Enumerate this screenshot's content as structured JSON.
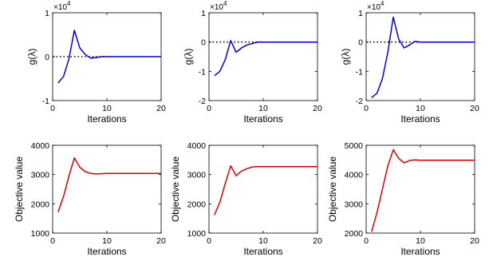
{
  "chart_data": [
    {
      "type": "line",
      "xlabel": "Iterations",
      "ylabel": "g(λ)",
      "exponent_label": "×10",
      "exponent_power": "4",
      "xlim": [
        0,
        20
      ],
      "ylim": [
        -1,
        1
      ],
      "xticks": [
        0,
        10,
        20
      ],
      "yticks": [
        -1,
        0,
        1
      ],
      "ytick_labels": [
        "-1",
        "0",
        "1"
      ],
      "color": "#0000dd",
      "zero_line": true,
      "x": [
        1,
        2,
        3,
        4,
        5,
        6,
        7,
        8,
        9,
        10,
        11,
        12,
        13,
        14,
        15,
        16,
        17,
        18,
        19,
        20
      ],
      "y": [
        -0.6,
        -0.45,
        -0.05,
        0.6,
        0.2,
        0.05,
        -0.03,
        -0.02,
        0,
        0,
        0,
        0,
        0,
        0,
        0,
        0,
        0,
        0,
        0,
        0
      ]
    },
    {
      "type": "line",
      "xlabel": "Iterations",
      "ylabel": "g(λ)",
      "exponent_label": "×10",
      "exponent_power": "4",
      "xlim": [
        0,
        20
      ],
      "ylim": [
        -2,
        1
      ],
      "xticks": [
        0,
        10,
        20
      ],
      "yticks": [
        -2,
        -1,
        0,
        1
      ],
      "ytick_labels": [
        "-2",
        "-1",
        "0",
        "1"
      ],
      "color": "#0000dd",
      "zero_line": true,
      "x": [
        1,
        2,
        3,
        4,
        5,
        6,
        7,
        8,
        9,
        10,
        11,
        12,
        13,
        14,
        15,
        16,
        17,
        18,
        19,
        20
      ],
      "y": [
        -1.15,
        -1.0,
        -0.6,
        0.05,
        -0.35,
        -0.2,
        -0.1,
        -0.05,
        0,
        0,
        0,
        0,
        0,
        0,
        0,
        0,
        0,
        0,
        0,
        0
      ]
    },
    {
      "type": "line",
      "xlabel": "Iterations",
      "ylabel": "g(λ)",
      "exponent_label": "×10",
      "exponent_power": "4",
      "xlim": [
        0,
        20
      ],
      "ylim": [
        -2,
        1
      ],
      "xticks": [
        0,
        10,
        20
      ],
      "yticks": [
        -2,
        -1,
        0,
        1
      ],
      "ytick_labels": [
        "-2",
        "-1",
        "0",
        "1"
      ],
      "color": "#0000dd",
      "zero_line": true,
      "x": [
        1,
        2,
        3,
        4,
        5,
        6,
        7,
        8,
        9,
        10,
        11,
        12,
        13,
        14,
        15,
        16,
        17,
        18,
        19,
        20
      ],
      "y": [
        -1.9,
        -1.75,
        -1.25,
        -0.35,
        0.85,
        0.1,
        -0.2,
        -0.1,
        0.02,
        0,
        0,
        0,
        0,
        0,
        0,
        0,
        0,
        0,
        0,
        0
      ]
    },
    {
      "type": "line",
      "xlabel": "Iterations",
      "ylabel": "Objective value",
      "xlim": [
        0,
        20
      ],
      "ylim": [
        1000,
        4000
      ],
      "xticks": [
        0,
        10,
        20
      ],
      "yticks": [
        1000,
        2000,
        3000,
        4000
      ],
      "ytick_labels": [
        "1000",
        "2000",
        "3000",
        "4000"
      ],
      "color": "#dd0000",
      "zero_line": false,
      "x": [
        1,
        2,
        3,
        4,
        5,
        6,
        7,
        8,
        9,
        10,
        11,
        12,
        13,
        14,
        15,
        16,
        17,
        18,
        19,
        20
      ],
      "y": [
        1720,
        2250,
        2950,
        3570,
        3250,
        3100,
        3040,
        3020,
        3030,
        3040,
        3040,
        3040,
        3040,
        3040,
        3040,
        3040,
        3040,
        3040,
        3040,
        3040
      ]
    },
    {
      "type": "line",
      "xlabel": "Iterations",
      "ylabel": "Objective value",
      "xlim": [
        0,
        20
      ],
      "ylim": [
        1000,
        4000
      ],
      "xticks": [
        0,
        10,
        20
      ],
      "yticks": [
        1000,
        2000,
        3000,
        4000
      ],
      "ytick_labels": [
        "1000",
        "2000",
        "3000",
        "4000"
      ],
      "color": "#dd0000",
      "zero_line": false,
      "x": [
        1,
        2,
        3,
        4,
        5,
        6,
        7,
        8,
        9,
        10,
        11,
        12,
        13,
        14,
        15,
        16,
        17,
        18,
        19,
        20
      ],
      "y": [
        1620,
        2050,
        2700,
        3300,
        2960,
        3120,
        3200,
        3260,
        3270,
        3270,
        3270,
        3270,
        3270,
        3270,
        3270,
        3270,
        3270,
        3270,
        3270,
        3270
      ]
    },
    {
      "type": "line",
      "xlabel": "Iterations",
      "ylabel": "Objective value",
      "xlim": [
        0,
        20
      ],
      "ylim": [
        2000,
        5000
      ],
      "xticks": [
        0,
        10,
        20
      ],
      "yticks": [
        2000,
        3000,
        4000,
        5000
      ],
      "ytick_labels": [
        "2000",
        "3000",
        "4000",
        "5000"
      ],
      "color": "#dd0000",
      "zero_line": false,
      "x": [
        1,
        2,
        3,
        4,
        5,
        6,
        7,
        8,
        9,
        10,
        11,
        12,
        13,
        14,
        15,
        16,
        17,
        18,
        19,
        20
      ],
      "y": [
        2050,
        2700,
        3500,
        4300,
        4850,
        4550,
        4400,
        4480,
        4500,
        4490,
        4490,
        4490,
        4490,
        4490,
        4490,
        4490,
        4490,
        4490,
        4490,
        4490
      ]
    }
  ]
}
